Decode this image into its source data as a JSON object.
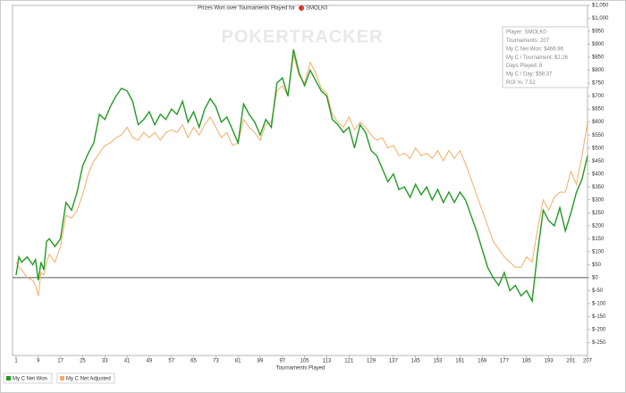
{
  "chart_data": {
    "type": "line",
    "title": "Prizes Won over Tournaments Played for",
    "player": "SMOLK0",
    "watermark": "POKERTRACKER",
    "x_label": "Tournaments Played",
    "info_lines": [
      "Player: SMOLK0",
      "Tournaments: 207",
      "My C Net Won: $466.96",
      "My C / Tournament: $2.26",
      "Days Played: 8",
      "My C / Day: $58.37",
      "ROI %: 7.52"
    ],
    "x": [
      1,
      2,
      3,
      5,
      7,
      8,
      9,
      10,
      11,
      12,
      13,
      15,
      17,
      19,
      21,
      23,
      25,
      27,
      29,
      31,
      33,
      35,
      37,
      39,
      41,
      43,
      45,
      47,
      49,
      51,
      53,
      55,
      57,
      59,
      61,
      63,
      65,
      67,
      69,
      71,
      73,
      75,
      77,
      79,
      81,
      83,
      85,
      87,
      89,
      91,
      93,
      95,
      97,
      99,
      101,
      103,
      105,
      107,
      109,
      111,
      113,
      115,
      117,
      119,
      121,
      123,
      125,
      127,
      129,
      131,
      133,
      135,
      137,
      139,
      141,
      143,
      145,
      147,
      149,
      151,
      153,
      155,
      157,
      159,
      161,
      163,
      165,
      167,
      169,
      171,
      173,
      175,
      177,
      179,
      181,
      183,
      185,
      187,
      189,
      191,
      193,
      195,
      197,
      199,
      201,
      203,
      205,
      207
    ],
    "series": [
      {
        "name": "My C Net Won",
        "color": "#229a22",
        "values": [
          10,
          80,
          60,
          80,
          50,
          70,
          -10,
          60,
          30,
          140,
          150,
          120,
          150,
          290,
          260,
          330,
          430,
          480,
          520,
          630,
          610,
          660,
          700,
          730,
          720,
          680,
          590,
          610,
          640,
          590,
          630,
          610,
          650,
          630,
          680,
          600,
          640,
          580,
          650,
          690,
          660,
          600,
          620,
          570,
          520,
          670,
          630,
          600,
          550,
          610,
          580,
          750,
          770,
          700,
          880,
          790,
          740,
          800,
          760,
          720,
          700,
          610,
          590,
          560,
          580,
          500,
          590,
          560,
          490,
          470,
          420,
          370,
          400,
          340,
          350,
          310,
          360,
          320,
          350,
          300,
          340,
          290,
          330,
          290,
          330,
          300,
          240,
          180,
          110,
          40,
          0,
          -30,
          20,
          -50,
          -30,
          -70,
          -50,
          -90,
          100,
          260,
          220,
          200,
          270,
          180,
          250,
          330,
          380,
          470
        ]
      },
      {
        "name": "My C Net Adjusted",
        "color": "#f3ad68",
        "values": [
          60,
          40,
          30,
          0,
          -10,
          -30,
          -70,
          20,
          10,
          60,
          90,
          60,
          120,
          240,
          230,
          260,
          320,
          400,
          450,
          480,
          510,
          520,
          540,
          550,
          580,
          540,
          530,
          560,
          540,
          560,
          530,
          560,
          570,
          560,
          590,
          540,
          580,
          550,
          590,
          620,
          580,
          540,
          560,
          510,
          520,
          610,
          580,
          560,
          530,
          590,
          600,
          720,
          740,
          700,
          860,
          780,
          750,
          830,
          790,
          730,
          710,
          630,
          600,
          580,
          620,
          570,
          600,
          580,
          550,
          530,
          540,
          500,
          510,
          470,
          480,
          460,
          500,
          470,
          480,
          460,
          490,
          450,
          490,
          460,
          490,
          440,
          380,
          320,
          260,
          200,
          140,
          110,
          80,
          60,
          40,
          40,
          80,
          60,
          190,
          300,
          260,
          310,
          330,
          330,
          410,
          360,
          470,
          600
        ]
      }
    ],
    "xlim": [
      1,
      207
    ],
    "xticks": [
      1,
      9,
      17,
      25,
      33,
      41,
      49,
      57,
      65,
      73,
      81,
      89,
      97,
      105,
      113,
      121,
      129,
      137,
      145,
      153,
      161,
      169,
      177,
      185,
      193,
      201,
      207
    ],
    "ylim": [
      -300,
      1050
    ],
    "yticks": [
      {
        "value": -250,
        "label": "$-250"
      },
      {
        "value": -200,
        "label": "$-200"
      },
      {
        "value": -150,
        "label": "$-150"
      },
      {
        "value": -100,
        "label": "$-100"
      },
      {
        "value": -50,
        "label": "$-50"
      },
      {
        "value": 0,
        "label": "$0"
      },
      {
        "value": 50,
        "label": "$50"
      },
      {
        "value": 100,
        "label": "$100"
      },
      {
        "value": 150,
        "label": "$150"
      },
      {
        "value": 200,
        "label": "$200"
      },
      {
        "value": 250,
        "label": "$250"
      },
      {
        "value": 300,
        "label": "$300"
      },
      {
        "value": 350,
        "label": "$350"
      },
      {
        "value": 400,
        "label": "$400"
      },
      {
        "value": 450,
        "label": "$450"
      },
      {
        "value": 500,
        "label": "$500"
      },
      {
        "value": 550,
        "label": "$550"
      },
      {
        "value": 600,
        "label": "$600"
      },
      {
        "value": 650,
        "label": "$650"
      },
      {
        "value": 700,
        "label": "$700"
      },
      {
        "value": 750,
        "label": "$750"
      },
      {
        "value": 800,
        "label": "$800"
      },
      {
        "value": 850,
        "label": "$850"
      },
      {
        "value": 900,
        "label": "$900"
      },
      {
        "value": 950,
        "label": "$950"
      },
      {
        "value": 1000,
        "label": "$1,000"
      },
      {
        "value": 1050,
        "label": "$1,050"
      }
    ]
  }
}
